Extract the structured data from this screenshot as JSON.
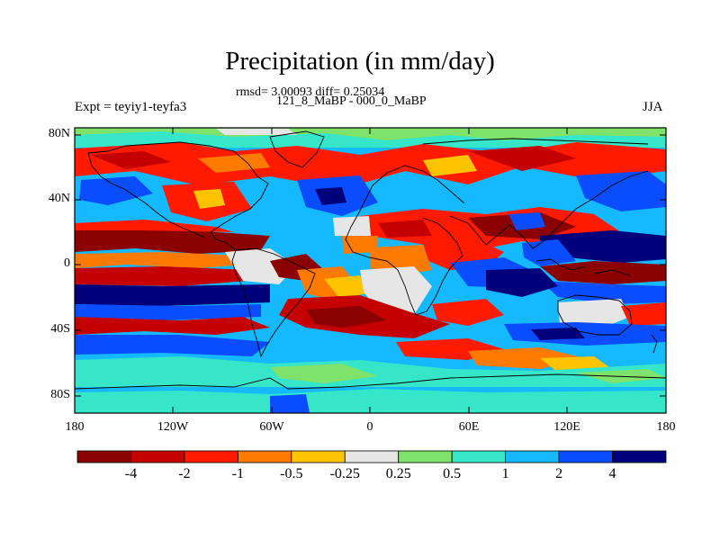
{
  "figure": {
    "title": "Precipitation (in mm/day)",
    "stats_line": "rmsd= 3.00093 diff= 0.25034",
    "experiment_periods": "121_8_MaBP - 000_0_MaBP",
    "left_label": "Expt = teyiy1-teyfa3",
    "right_label": "JJA"
  },
  "axes": {
    "y_ticks": [
      "80N",
      "40N",
      "0",
      "40S",
      "80S"
    ],
    "x_ticks": [
      "180",
      "120W",
      "60W",
      "0",
      "60E",
      "120E",
      "180"
    ]
  },
  "colorbar": {
    "labels": [
      "-4",
      "-2",
      "-1",
      "-0.5",
      "-0.25",
      "0.25",
      "0.5",
      "1",
      "2",
      "4"
    ],
    "colors": [
      "#8b0000",
      "#c50000",
      "#ff1a00",
      "#ff7a00",
      "#ffc400",
      "#e6e6e6",
      "#7fe36b",
      "#35e6c9",
      "#15b9ff",
      "#0a4dff",
      "#00007a"
    ]
  },
  "palette": {
    "dark_red": "#8b0000",
    "red": "#d81a00",
    "orange": "#ff7a00",
    "yellow": "#ffc400",
    "grey": "#e6e6e6",
    "green": "#7fe36b",
    "aqua": "#35e6c9",
    "sky": "#15b9ff",
    "blue": "#0a4dff",
    "navy": "#00007a"
  }
}
